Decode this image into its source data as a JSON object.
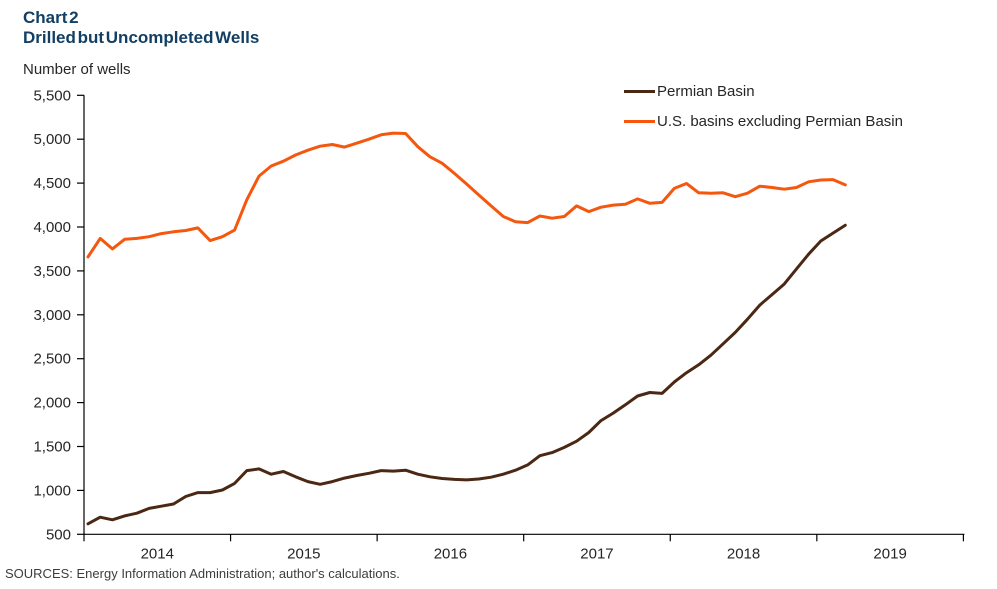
{
  "header": {
    "chart_number": "Chart 2",
    "title": "Drilled but Uncompleted Wells",
    "y_unit": "Number of wells"
  },
  "legend": [
    {
      "label": "Permian Basin",
      "color": "#4b2813"
    },
    {
      "label": "U.S. basins excluding Permian Basin",
      "color": "#f4570d"
    }
  ],
  "footer": {
    "source": "SOURCES: Energy Information  Administration; author's calculations."
  },
  "colors": {
    "title_text": "#123f63",
    "axis_line": "#000000",
    "tick_label": "#262626",
    "permian_line": "#4b2813",
    "us_ex_permian_line": "#f4570d"
  },
  "chart_data": {
    "type": "line",
    "title": "Drilled but Uncompleted Wells",
    "ylabel": "Number of wells",
    "xlabel": "",
    "grid": false,
    "legend_position": "top-right",
    "x_axis_year_labels": [
      "2014",
      "2015",
      "2016",
      "2017",
      "2018",
      "2019"
    ],
    "x_axis_range_years": [
      2014,
      2020
    ],
    "ylim": [
      500,
      5500
    ],
    "yticks": [
      500,
      1000,
      1500,
      2000,
      2500,
      3000,
      3500,
      4000,
      4500,
      5000,
      5500
    ],
    "months": [
      "2014-01",
      "2014-02",
      "2014-03",
      "2014-04",
      "2014-05",
      "2014-06",
      "2014-07",
      "2014-08",
      "2014-09",
      "2014-10",
      "2014-11",
      "2014-12",
      "2015-01",
      "2015-02",
      "2015-03",
      "2015-04",
      "2015-05",
      "2015-06",
      "2015-07",
      "2015-08",
      "2015-09",
      "2015-10",
      "2015-11",
      "2015-12",
      "2016-01",
      "2016-02",
      "2016-03",
      "2016-04",
      "2016-05",
      "2016-06",
      "2016-07",
      "2016-08",
      "2016-09",
      "2016-10",
      "2016-11",
      "2016-12",
      "2017-01",
      "2017-02",
      "2017-03",
      "2017-04",
      "2017-05",
      "2017-06",
      "2017-07",
      "2017-08",
      "2017-09",
      "2017-10",
      "2017-11",
      "2017-12",
      "2018-01",
      "2018-02",
      "2018-03",
      "2018-04",
      "2018-05",
      "2018-06",
      "2018-07",
      "2018-08",
      "2018-09",
      "2018-10",
      "2018-11",
      "2018-12",
      "2019-01",
      "2019-02",
      "2019-03"
    ],
    "series": [
      {
        "name": "Permian Basin",
        "color": "#4b2813",
        "values": [
          620,
          695,
          665,
          710,
          740,
          795,
          820,
          845,
          930,
          975,
          975,
          1005,
          1080,
          1225,
          1245,
          1185,
          1215,
          1155,
          1100,
          1070,
          1100,
          1140,
          1170,
          1195,
          1225,
          1220,
          1230,
          1185,
          1155,
          1135,
          1125,
          1120,
          1130,
          1150,
          1185,
          1230,
          1290,
          1395,
          1430,
          1490,
          1560,
          1660,
          1795,
          1880,
          1975,
          2075,
          2115,
          2105,
          2235,
          2340,
          2430,
          2540,
          2670,
          2800,
          2950,
          3110,
          3230,
          3350,
          3520,
          3690,
          3840,
          3930,
          4020
        ]
      },
      {
        "name": "U.S. basins excluding Permian Basin",
        "color": "#f4570d",
        "values": [
          3660,
          3870,
          3750,
          3860,
          3870,
          3890,
          3925,
          3945,
          3960,
          3990,
          3845,
          3890,
          3965,
          4310,
          4580,
          4695,
          4750,
          4820,
          4875,
          4920,
          4940,
          4910,
          4955,
          5000,
          5050,
          5070,
          5065,
          4915,
          4800,
          4725,
          4610,
          4490,
          4365,
          4240,
          4120,
          4060,
          4050,
          4125,
          4100,
          4120,
          4240,
          4175,
          4225,
          4250,
          4260,
          4320,
          4270,
          4280,
          4440,
          4495,
          4390,
          4385,
          4390,
          4345,
          4385,
          4465,
          4450,
          4430,
          4450,
          4515,
          4535,
          4540,
          4480
        ]
      }
    ]
  }
}
